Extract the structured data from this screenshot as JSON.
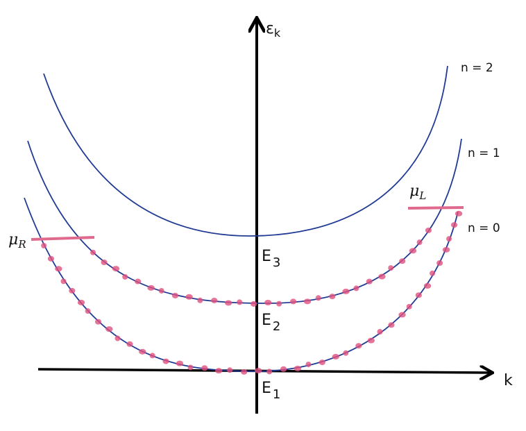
{
  "axes": {
    "y_label": "ε",
    "y_label_sub": "k",
    "x_label": "k"
  },
  "bands": [
    {
      "label": "n = 2"
    },
    {
      "label": "n = 1"
    },
    {
      "label": "n = 0"
    }
  ],
  "chemical_potentials": [
    {
      "symbol": "μ",
      "sub": "L"
    },
    {
      "symbol": "μ",
      "sub": "R"
    }
  ],
  "energies": [
    {
      "label": "E",
      "sub": "3"
    },
    {
      "label": "E",
      "sub": "2"
    },
    {
      "label": "E",
      "sub": "1"
    }
  ]
}
